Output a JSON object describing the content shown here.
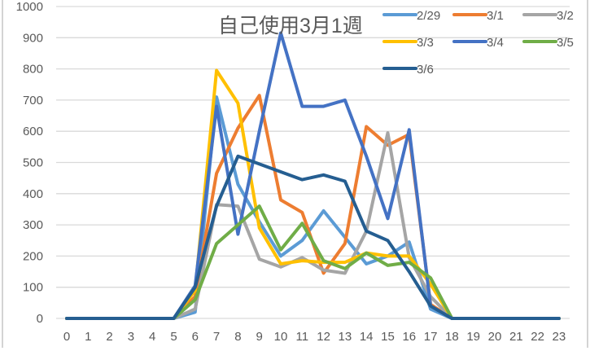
{
  "chart_data": {
    "type": "line",
    "title": "自己使用3月1週",
    "xlabel": "",
    "ylabel": "",
    "x": [
      0,
      1,
      2,
      3,
      4,
      5,
      6,
      7,
      8,
      9,
      10,
      11,
      12,
      13,
      14,
      15,
      16,
      17,
      18,
      19,
      20,
      21,
      22,
      23
    ],
    "ylim": [
      0,
      1000
    ],
    "yticks": [
      0,
      100,
      200,
      300,
      400,
      500,
      600,
      700,
      800,
      900,
      1000
    ],
    "grid": true,
    "legend_position": "top-right",
    "series": [
      {
        "name": "2/29",
        "color": "#5B9BD5",
        "values": [
          0,
          0,
          0,
          0,
          0,
          0,
          20,
          710,
          430,
          310,
          200,
          250,
          345,
          260,
          175,
          200,
          245,
          30,
          0,
          0,
          0,
          0,
          0,
          0
        ]
      },
      {
        "name": "3/1",
        "color": "#ED7D31",
        "values": [
          0,
          0,
          0,
          0,
          0,
          0,
          70,
          465,
          610,
          715,
          380,
          340,
          145,
          240,
          615,
          555,
          590,
          45,
          0,
          0,
          0,
          0,
          0,
          0
        ]
      },
      {
        "name": "3/2",
        "color": "#A5A5A5",
        "values": [
          0,
          0,
          0,
          0,
          0,
          0,
          30,
          365,
          360,
          190,
          165,
          195,
          155,
          145,
          280,
          595,
          195,
          70,
          0,
          0,
          0,
          0,
          0,
          0
        ]
      },
      {
        "name": "3/3",
        "color": "#FFC000",
        "values": [
          0,
          0,
          0,
          0,
          0,
          0,
          90,
          795,
          690,
          290,
          175,
          185,
          180,
          180,
          210,
          200,
          200,
          110,
          0,
          0,
          0,
          0,
          0,
          0
        ]
      },
      {
        "name": "3/4",
        "color": "#4472C4",
        "values": [
          0,
          0,
          0,
          0,
          0,
          0,
          105,
          680,
          270,
          600,
          915,
          680,
          680,
          700,
          520,
          320,
          605,
          40,
          0,
          0,
          0,
          0,
          0,
          0
        ]
      },
      {
        "name": "3/5",
        "color": "#70AD47",
        "values": [
          0,
          0,
          0,
          0,
          0,
          0,
          60,
          240,
          300,
          360,
          220,
          305,
          185,
          160,
          210,
          170,
          180,
          130,
          0,
          0,
          0,
          0,
          0,
          0
        ]
      },
      {
        "name": "3/6",
        "color": "#255E91",
        "values": [
          0,
          0,
          0,
          0,
          0,
          0,
          100,
          360,
          520,
          495,
          470,
          445,
          460,
          440,
          280,
          250,
          150,
          40,
          0,
          0,
          0,
          0,
          0,
          0
        ]
      }
    ]
  }
}
